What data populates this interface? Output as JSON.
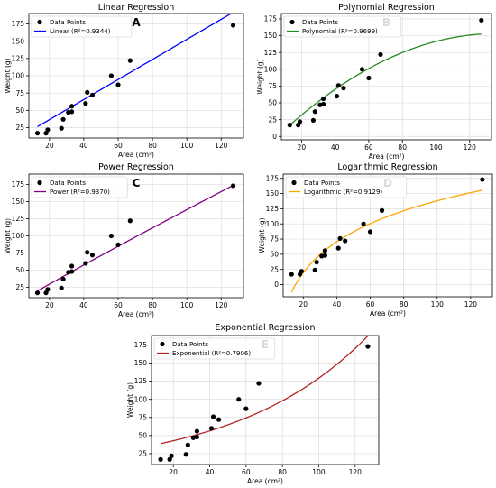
{
  "chart_data": [
    {
      "type": "scatter",
      "title": "Linear Regression",
      "panel_letter": "A",
      "xlabel": "Area (cm²)",
      "ylabel": "Weight (g)",
      "xlim": [
        8,
        133
      ],
      "ylim": [
        10,
        190
      ],
      "xticks": [
        20,
        40,
        60,
        80,
        100,
        120
      ],
      "yticks": [
        25,
        50,
        75,
        100,
        125,
        150,
        175
      ],
      "grid": true,
      "legend_position": "top-left",
      "points_label": "Data Points",
      "points": [
        [
          13,
          17
        ],
        [
          18,
          17
        ],
        [
          19,
          22
        ],
        [
          27,
          24
        ],
        [
          28,
          37
        ],
        [
          31,
          47
        ],
        [
          33,
          48
        ],
        [
          33,
          56
        ],
        [
          41,
          60
        ],
        [
          42,
          76
        ],
        [
          45,
          72
        ],
        [
          56,
          100
        ],
        [
          60,
          87
        ],
        [
          67,
          122
        ],
        [
          127,
          173
        ]
      ],
      "fit": {
        "label": "Linear (R²=0.9344)",
        "color": "#0000ff",
        "model": "linear",
        "a": 1.45,
        "b": 7.6
      }
    },
    {
      "type": "scatter",
      "title": "Polynomial Regression",
      "panel_letter": "B",
      "xlabel": "Area (cm²)",
      "ylabel": "Weight (g)",
      "xlim": [
        8,
        133
      ],
      "ylim": [
        -5,
        183
      ],
      "xticks": [
        20,
        40,
        60,
        80,
        100,
        120
      ],
      "yticks": [
        0,
        25,
        50,
        75,
        100,
        125,
        150,
        175
      ],
      "grid": true,
      "legend_position": "top-left",
      "points_label": "Data Points",
      "points": [
        [
          13,
          17
        ],
        [
          18,
          17
        ],
        [
          19,
          22
        ],
        [
          27,
          24
        ],
        [
          28,
          37
        ],
        [
          31,
          47
        ],
        [
          33,
          48
        ],
        [
          33,
          56
        ],
        [
          41,
          60
        ],
        [
          42,
          76
        ],
        [
          45,
          72
        ],
        [
          56,
          100
        ],
        [
          60,
          87
        ],
        [
          67,
          122
        ],
        [
          127,
          173
        ]
      ],
      "fit": {
        "label": "Polynomial (R²=0.9699)",
        "color": "#228b22",
        "model": "quadratic",
        "a": -0.009,
        "b": 2.45,
        "c": -13.5
      }
    },
    {
      "type": "scatter",
      "title": "Power Regression",
      "panel_letter": "C",
      "xlabel": "Area (cm²)",
      "ylabel": "Weight (g)",
      "xlim": [
        8,
        133
      ],
      "ylim": [
        10,
        190
      ],
      "xticks": [
        20,
        40,
        60,
        80,
        100,
        120
      ],
      "yticks": [
        25,
        50,
        75,
        100,
        125,
        150,
        175
      ],
      "grid": true,
      "legend_position": "top-left",
      "points_label": "Data Points",
      "points": [
        [
          13,
          17
        ],
        [
          18,
          17
        ],
        [
          19,
          22
        ],
        [
          27,
          24
        ],
        [
          28,
          37
        ],
        [
          31,
          47
        ],
        [
          33,
          48
        ],
        [
          33,
          56
        ],
        [
          41,
          60
        ],
        [
          42,
          76
        ],
        [
          45,
          72
        ],
        [
          56,
          100
        ],
        [
          60,
          87
        ],
        [
          67,
          122
        ],
        [
          127,
          173
        ]
      ],
      "fit": {
        "label": "Power (R²=0.9370)",
        "color": "#800080",
        "model": "power",
        "a": 1.7,
        "b": 0.955
      }
    },
    {
      "type": "scatter",
      "title": "Logarithmic Regression",
      "panel_letter": "D",
      "xlabel": "Area (cm²)",
      "ylabel": "Weight (g)",
      "xlim": [
        8,
        133
      ],
      "ylim": [
        -20,
        182
      ],
      "xticks": [
        20,
        40,
        60,
        80,
        100,
        120
      ],
      "yticks": [
        0,
        25,
        50,
        75,
        100,
        125,
        150,
        175
      ],
      "grid": true,
      "legend_position": "top-left",
      "points_label": "Data Points",
      "points": [
        [
          13,
          17
        ],
        [
          18,
          17
        ],
        [
          19,
          22
        ],
        [
          27,
          24
        ],
        [
          28,
          37
        ],
        [
          31,
          47
        ],
        [
          33,
          48
        ],
        [
          33,
          56
        ],
        [
          41,
          60
        ],
        [
          42,
          76
        ],
        [
          45,
          72
        ],
        [
          56,
          100
        ],
        [
          60,
          87
        ],
        [
          67,
          122
        ],
        [
          127,
          173
        ]
      ],
      "fit": {
        "label": "Logarithmic (R²=0.9129)",
        "color": "#ffa500",
        "model": "log",
        "a": 73.6,
        "b": -201
      }
    },
    {
      "type": "scatter",
      "title": "Exponential Regression",
      "panel_letter": "E",
      "xlabel": "Area (cm²)",
      "ylabel": "Weight (g)",
      "xlim": [
        8,
        133
      ],
      "ylim": [
        10,
        188
      ],
      "xticks": [
        20,
        40,
        60,
        80,
        100,
        120
      ],
      "yticks": [
        25,
        50,
        75,
        100,
        125,
        150,
        175
      ],
      "grid": true,
      "legend_position": "top-left",
      "points_label": "Data Points",
      "points": [
        [
          13,
          17
        ],
        [
          18,
          17
        ],
        [
          19,
          22
        ],
        [
          27,
          24
        ],
        [
          28,
          37
        ],
        [
          31,
          47
        ],
        [
          33,
          48
        ],
        [
          33,
          56
        ],
        [
          41,
          60
        ],
        [
          42,
          76
        ],
        [
          45,
          72
        ],
        [
          56,
          100
        ],
        [
          60,
          87
        ],
        [
          67,
          122
        ],
        [
          127,
          173
        ]
      ],
      "fit": {
        "label": "Exponential (R²=0.7906)",
        "color": "#b22222",
        "model": "exp",
        "a": 32.5,
        "b": 0.0138
      }
    }
  ]
}
